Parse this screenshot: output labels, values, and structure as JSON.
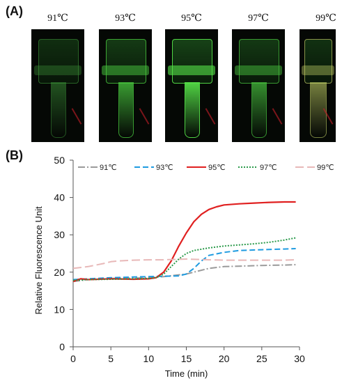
{
  "panel_a": {
    "label": "(A)",
    "photos": [
      {
        "temperature": "91℃",
        "fill": 0.25,
        "tint": "#3e9a3a"
      },
      {
        "temperature": "93℃",
        "fill": 0.65,
        "tint": "#49c83f"
      },
      {
        "temperature": "95℃",
        "fill": 0.9,
        "tint": "#55e048"
      },
      {
        "temperature": "97℃",
        "fill": 0.6,
        "tint": "#47c03e"
      },
      {
        "temperature": "99℃",
        "fill": 0.35,
        "tint": "#c9d86a"
      }
    ]
  },
  "chart_data": {
    "type": "line",
    "panel_label": "(B)",
    "xlabel": "Time (min)",
    "ylabel": "Relative Fluorescence Unit",
    "xlim": [
      0,
      30
    ],
    "ylim": [
      0,
      50
    ],
    "xticks": [
      0,
      5,
      10,
      15,
      20,
      25,
      30
    ],
    "yticks": [
      0,
      10,
      20,
      30,
      40,
      50
    ],
    "legend_position": "top",
    "grid": false,
    "series": [
      {
        "name": "91℃",
        "color": "#9a9a9a",
        "dash": "10,3,2,3",
        "x": [
          0,
          2,
          5,
          8,
          10,
          12,
          15,
          16,
          18,
          20,
          22,
          25,
          28,
          29.5
        ],
        "y": [
          17.5,
          18.0,
          18.3,
          18.4,
          18.5,
          18.8,
          19.5,
          20.0,
          21.0,
          21.5,
          21.6,
          21.8,
          21.9,
          22.0
        ]
      },
      {
        "name": "93℃",
        "color": "#1e9be0",
        "dash": "8,4",
        "x": [
          0,
          2,
          5,
          8,
          10,
          12,
          14,
          15,
          16,
          17,
          18,
          20,
          22,
          25,
          28,
          29.5
        ],
        "y": [
          18.0,
          18.2,
          18.5,
          18.7,
          18.8,
          18.9,
          19.0,
          19.5,
          21.0,
          23.0,
          24.5,
          25.3,
          25.8,
          26.0,
          26.2,
          26.3
        ]
      },
      {
        "name": "95℃",
        "color": "#e02020",
        "dash": "",
        "x": [
          0,
          1,
          2,
          5,
          8,
          10,
          11,
          12,
          13,
          14,
          15,
          16,
          17,
          18,
          19,
          20,
          22,
          24,
          26,
          28,
          29.5
        ],
        "y": [
          17.5,
          18.2,
          18.0,
          18.2,
          18.1,
          18.2,
          18.5,
          20.0,
          23.0,
          27.0,
          30.5,
          33.5,
          35.5,
          36.8,
          37.5,
          38.0,
          38.3,
          38.5,
          38.7,
          38.8,
          38.8
        ]
      },
      {
        "name": "97℃",
        "color": "#2a9a4a",
        "dash": "2,2",
        "x": [
          0,
          2,
          5,
          8,
          10,
          11,
          12,
          13,
          14,
          15,
          16,
          18,
          20,
          22,
          24,
          26,
          28,
          29.5
        ],
        "y": [
          17.8,
          18.0,
          18.1,
          18.2,
          18.3,
          18.5,
          19.5,
          21.5,
          23.5,
          25.0,
          25.8,
          26.5,
          27.0,
          27.3,
          27.6,
          28.0,
          28.6,
          29.2
        ]
      },
      {
        "name": "99℃",
        "color": "#e8b8b8",
        "dash": "12,5",
        "x": [
          0,
          2,
          4,
          5,
          6,
          8,
          10,
          12,
          15,
          18,
          20,
          22,
          25,
          28,
          29.5
        ],
        "y": [
          21.0,
          21.5,
          22.3,
          22.8,
          23.0,
          23.2,
          23.3,
          23.3,
          23.5,
          23.3,
          23.2,
          23.2,
          23.2,
          23.2,
          23.3
        ]
      }
    ]
  }
}
